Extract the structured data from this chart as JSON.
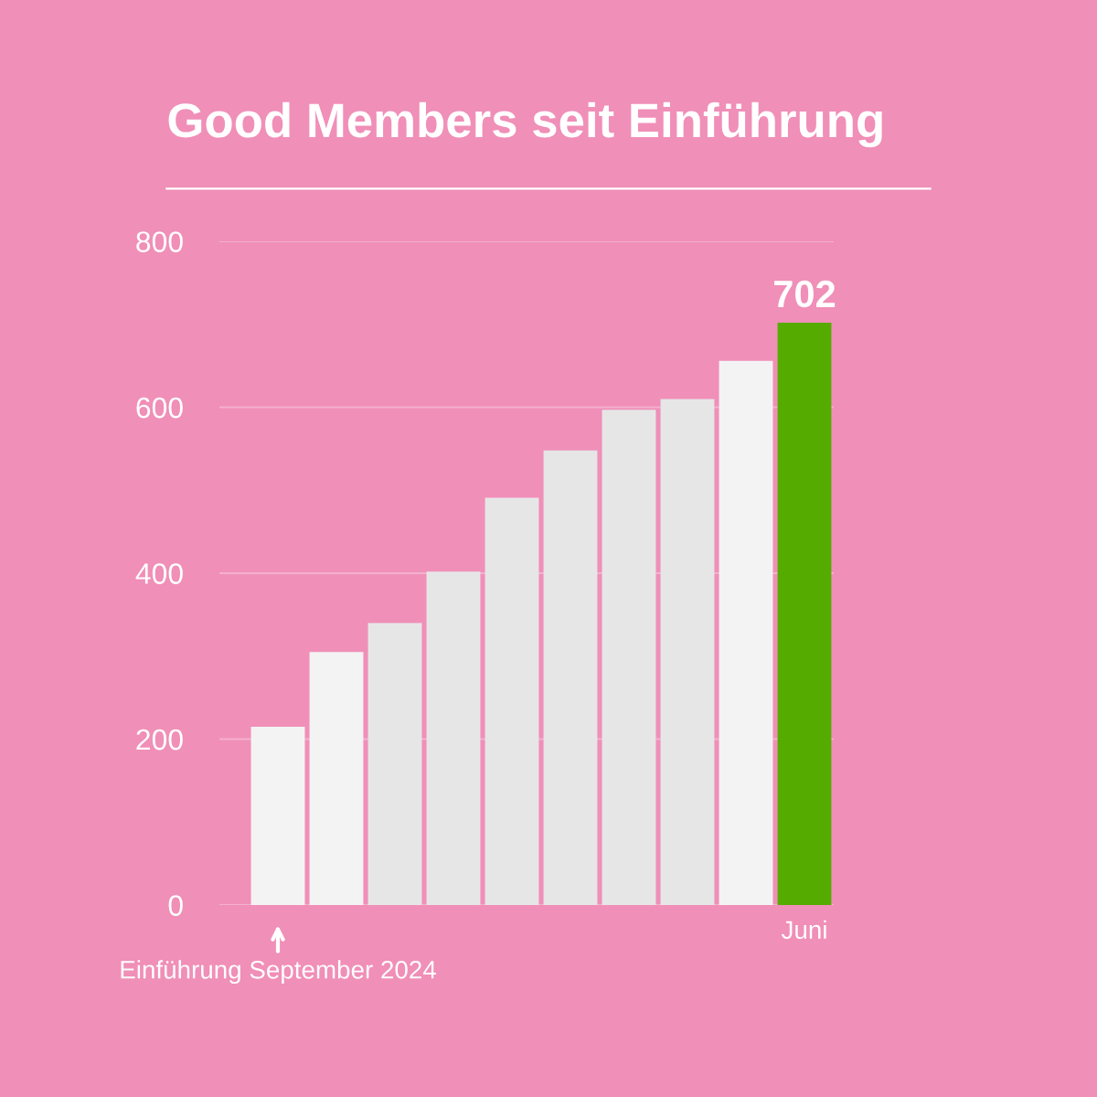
{
  "chart_data": {
    "type": "bar",
    "title": "Good Members seit Einführung",
    "categories": [
      "Einführung September 2024",
      null,
      null,
      null,
      null,
      null,
      null,
      null,
      null,
      "Juni"
    ],
    "values": [
      215,
      305,
      340,
      402,
      491,
      548,
      597,
      610,
      656,
      702
    ],
    "colors": [
      "#f3f3f3",
      "#f3f3f3",
      "#e6e6e6",
      "#e6e6e6",
      "#e6e6e6",
      "#e6e6e6",
      "#e6e6e6",
      "#e6e6e6",
      "#f3f3f3",
      "#56ab00"
    ],
    "value_labels": [
      null,
      null,
      null,
      null,
      null,
      null,
      null,
      null,
      null,
      "702"
    ],
    "ylim": [
      0,
      800
    ],
    "yticks": [
      0,
      200,
      400,
      600,
      800
    ],
    "grid": "y"
  }
}
